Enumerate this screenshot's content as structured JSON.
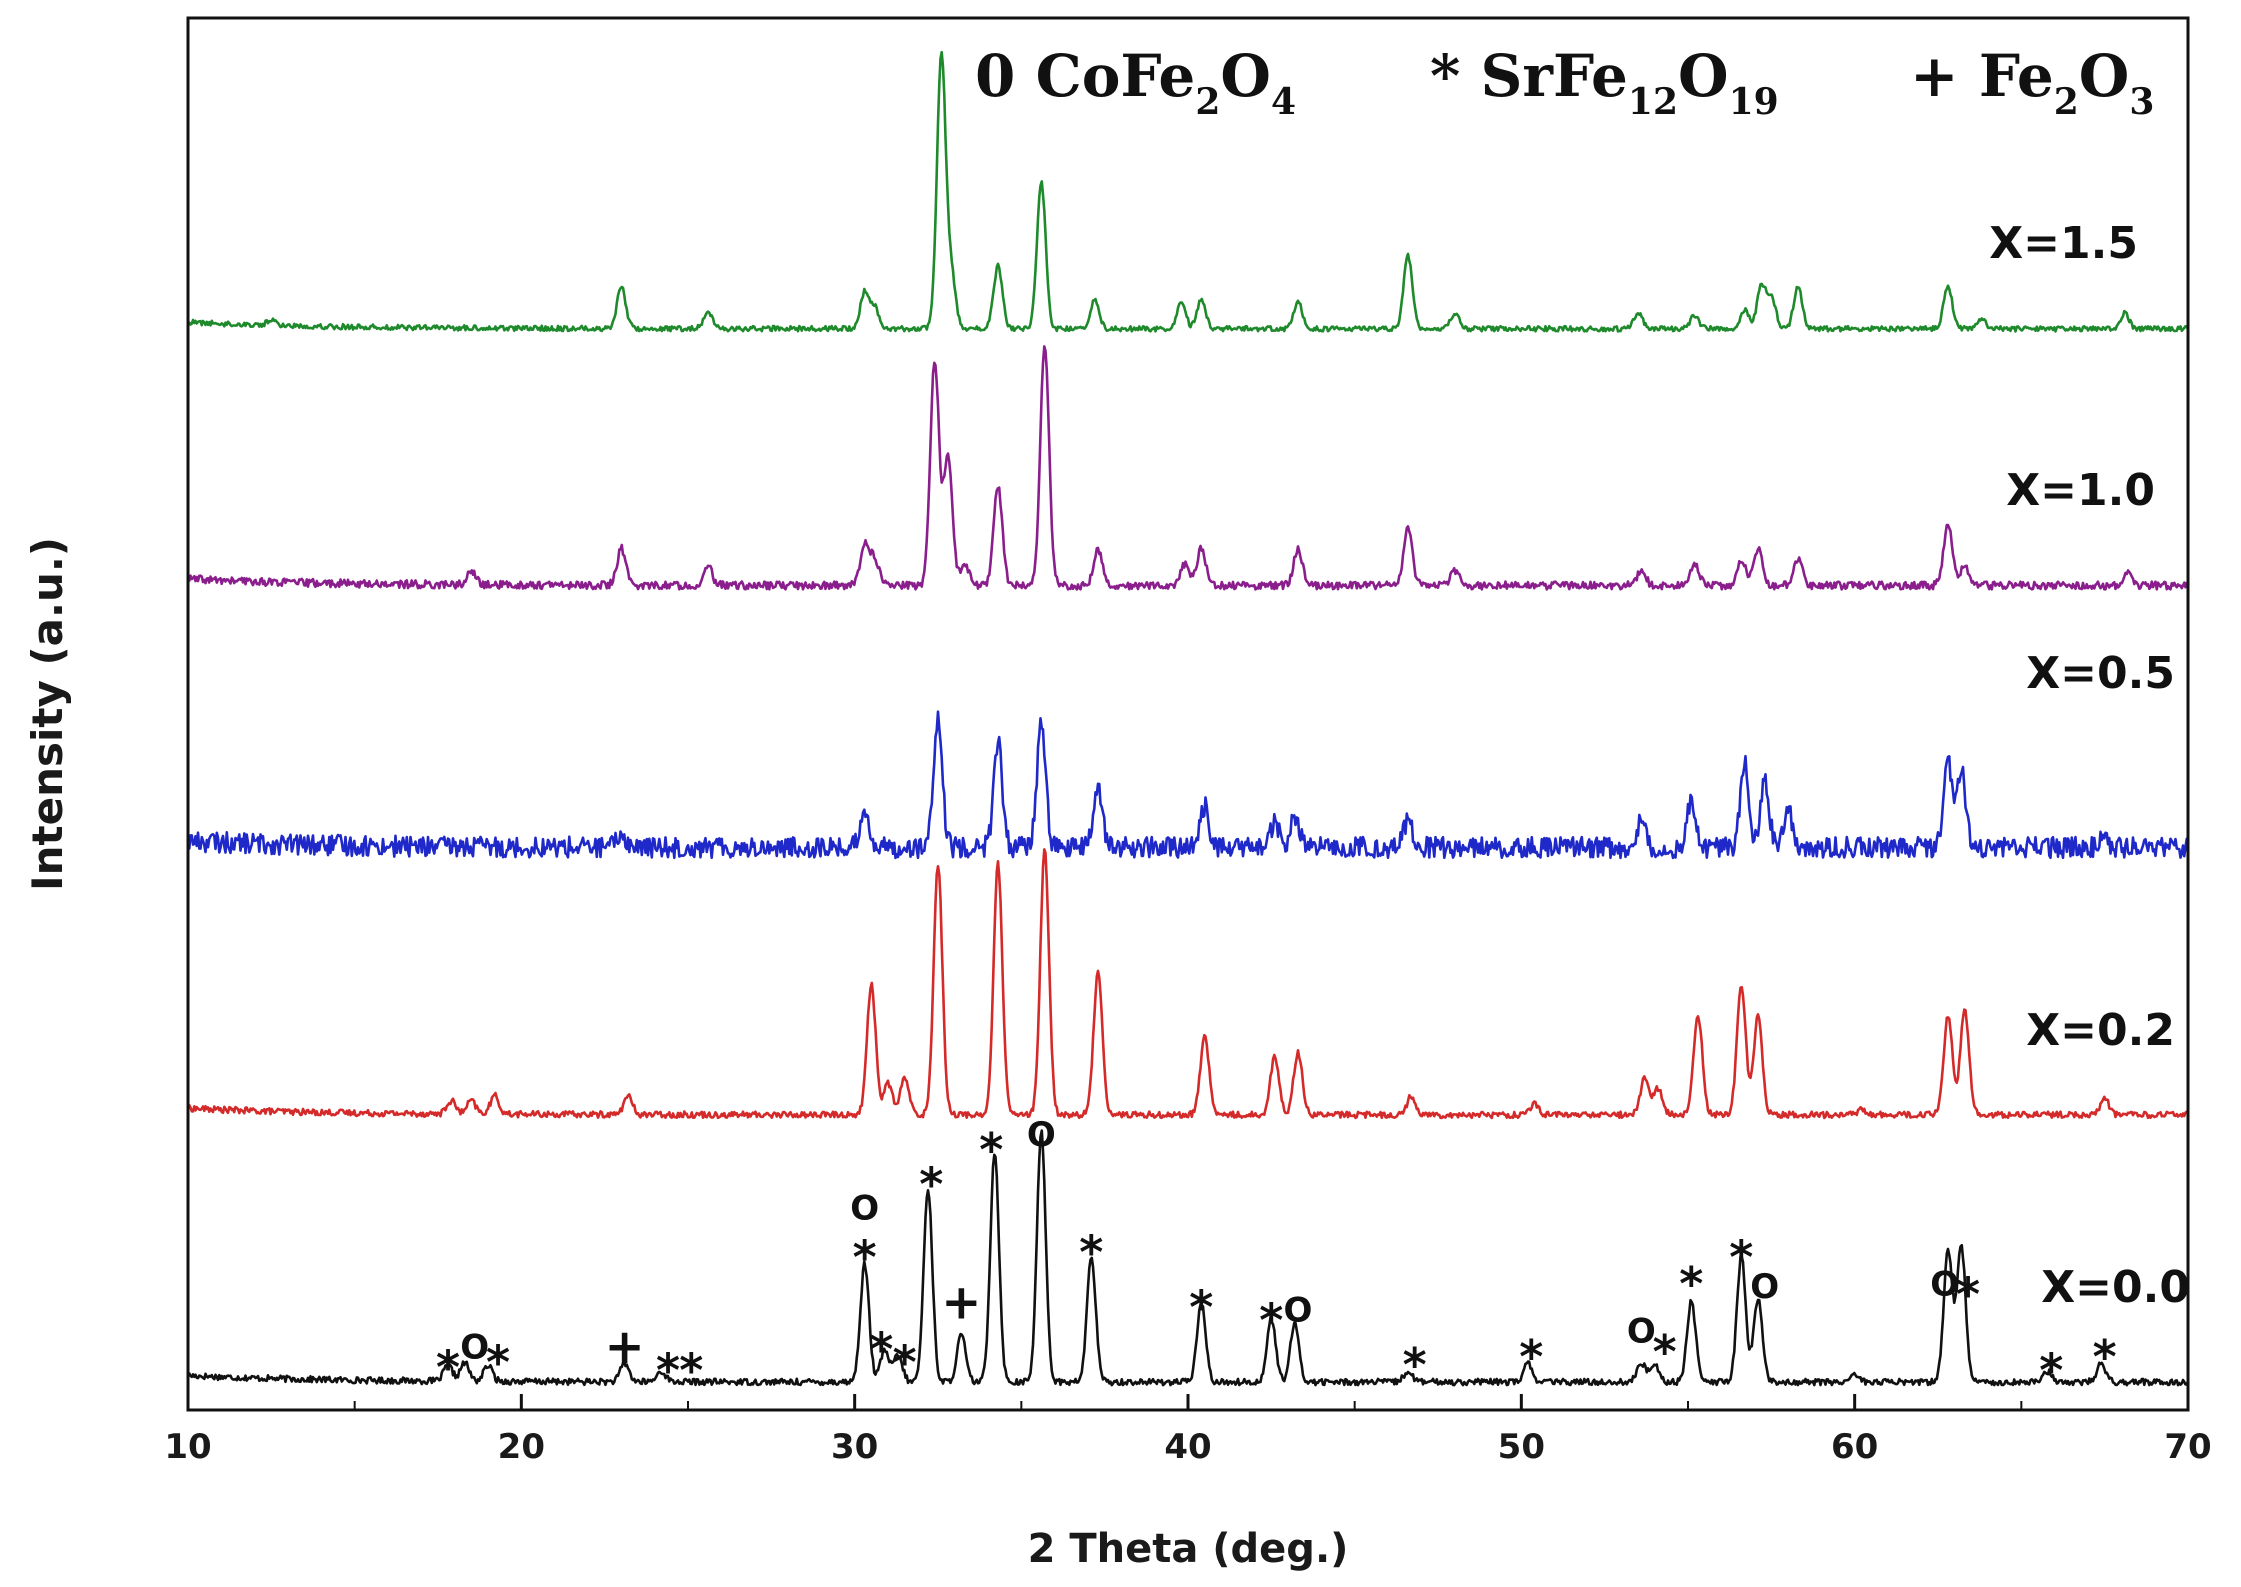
{
  "chart_data": {
    "type": "line",
    "xlabel": "2 Theta (deg.)",
    "ylabel": "Intensity (a.u.)",
    "xlim": [
      10,
      70
    ],
    "xticks": [
      "10",
      "20",
      "30",
      "40",
      "50",
      "60",
      "70"
    ],
    "y_ticks_shown": false,
    "grid": false,
    "legend": {
      "placement": "top",
      "items": [
        {
          "symbol": "0",
          "formula": [
            [
              "Co",
              ""
            ],
            [
              "Fe",
              "2"
            ],
            [
              "O",
              "4"
            ]
          ]
        },
        {
          "symbol": "*",
          "formula": [
            [
              "Sr",
              ""
            ],
            [
              "Fe",
              "12"
            ],
            [
              "O",
              "19"
            ]
          ]
        },
        {
          "symbol": "+",
          "formula": [
            [
              "Fe",
              "2"
            ],
            [
              "O",
              "3"
            ]
          ]
        }
      ]
    },
    "series": [
      {
        "name": "X=0.0",
        "color": "#111111",
        "baseline": 0.0,
        "noise": 0.012,
        "peaks": [
          [
            17.8,
            0.06
          ],
          [
            18.3,
            0.07
          ],
          [
            19.0,
            0.06
          ],
          [
            23.1,
            0.07
          ],
          [
            24.2,
            0.04
          ],
          [
            30.3,
            0.45
          ],
          [
            30.9,
            0.12
          ],
          [
            31.3,
            0.1
          ],
          [
            32.2,
            0.74
          ],
          [
            33.2,
            0.18
          ],
          [
            34.2,
            0.88
          ],
          [
            35.6,
            0.96
          ],
          [
            37.1,
            0.48
          ],
          [
            40.4,
            0.3
          ],
          [
            42.5,
            0.24
          ],
          [
            43.2,
            0.22
          ],
          [
            46.6,
            0.04
          ],
          [
            50.2,
            0.07
          ],
          [
            53.6,
            0.07
          ],
          [
            54.0,
            0.07
          ],
          [
            55.1,
            0.31
          ],
          [
            56.6,
            0.48
          ],
          [
            57.1,
            0.32
          ],
          [
            60.0,
            0.03
          ],
          [
            62.8,
            0.5
          ],
          [
            63.2,
            0.52
          ],
          [
            65.8,
            0.04
          ],
          [
            67.4,
            0.07
          ]
        ]
      },
      {
        "name": "X=0.2",
        "color": "#d42a2a",
        "baseline": 1.02,
        "noise": 0.012,
        "peaks": [
          [
            17.9,
            0.05
          ],
          [
            18.5,
            0.05
          ],
          [
            19.2,
            0.07
          ],
          [
            23.2,
            0.07
          ],
          [
            30.5,
            0.5
          ],
          [
            31.0,
            0.12
          ],
          [
            31.5,
            0.14
          ],
          [
            32.5,
            0.96
          ],
          [
            34.3,
            0.96
          ],
          [
            35.7,
            1.01
          ],
          [
            37.3,
            0.55
          ],
          [
            40.5,
            0.3
          ],
          [
            42.6,
            0.22
          ],
          [
            43.3,
            0.24
          ],
          [
            46.7,
            0.07
          ],
          [
            50.4,
            0.04
          ],
          [
            53.7,
            0.14
          ],
          [
            54.1,
            0.1
          ],
          [
            55.3,
            0.38
          ],
          [
            56.6,
            0.5
          ],
          [
            57.1,
            0.38
          ],
          [
            60.2,
            0.02
          ],
          [
            62.8,
            0.38
          ],
          [
            63.3,
            0.4
          ],
          [
            67.5,
            0.06
          ]
        ]
      },
      {
        "name": "X=0.5",
        "color": "#1f28c8",
        "baseline": 2.04,
        "noise": 0.04,
        "peaks": [
          [
            23.0,
            0.05
          ],
          [
            30.3,
            0.15
          ],
          [
            32.5,
            0.48
          ],
          [
            34.3,
            0.4
          ],
          [
            35.6,
            0.48
          ],
          [
            37.3,
            0.24
          ],
          [
            40.5,
            0.16
          ],
          [
            42.6,
            0.09
          ],
          [
            43.2,
            0.12
          ],
          [
            46.6,
            0.1
          ],
          [
            53.6,
            0.1
          ],
          [
            55.1,
            0.18
          ],
          [
            56.7,
            0.33
          ],
          [
            57.3,
            0.26
          ],
          [
            58.0,
            0.15
          ],
          [
            62.8,
            0.33
          ],
          [
            63.2,
            0.3
          ],
          [
            67.5,
            0.04
          ]
        ]
      },
      {
        "name": "X=1.0",
        "color": "#8a1e8c",
        "baseline": 3.04,
        "noise": 0.015,
        "peaks": [
          [
            18.5,
            0.05
          ],
          [
            23.0,
            0.14
          ],
          [
            25.6,
            0.07
          ],
          [
            30.3,
            0.16
          ],
          [
            30.6,
            0.1
          ],
          [
            32.4,
            0.86
          ],
          [
            32.8,
            0.5
          ],
          [
            33.3,
            0.08
          ],
          [
            34.3,
            0.38
          ],
          [
            35.7,
            0.92
          ],
          [
            37.3,
            0.14
          ],
          [
            39.9,
            0.08
          ],
          [
            40.4,
            0.14
          ],
          [
            43.3,
            0.14
          ],
          [
            46.6,
            0.22
          ],
          [
            48.0,
            0.06
          ],
          [
            53.6,
            0.06
          ],
          [
            55.2,
            0.08
          ],
          [
            56.6,
            0.1
          ],
          [
            57.1,
            0.14
          ],
          [
            58.3,
            0.1
          ],
          [
            62.8,
            0.24
          ],
          [
            63.3,
            0.08
          ],
          [
            68.2,
            0.05
          ]
        ]
      },
      {
        "name": "X=1.5",
        "color": "#1e8a2c",
        "baseline": 4.02,
        "noise": 0.01,
        "peaks": [
          [
            12.5,
            0.02
          ],
          [
            23.0,
            0.16
          ],
          [
            25.6,
            0.06
          ],
          [
            30.3,
            0.14
          ],
          [
            30.6,
            0.08
          ],
          [
            32.6,
            1.04
          ],
          [
            32.9,
            0.2
          ],
          [
            34.3,
            0.24
          ],
          [
            35.6,
            0.56
          ],
          [
            37.2,
            0.11
          ],
          [
            39.8,
            0.1
          ],
          [
            40.4,
            0.11
          ],
          [
            43.3,
            0.1
          ],
          [
            46.6,
            0.28
          ],
          [
            48.0,
            0.06
          ],
          [
            53.5,
            0.06
          ],
          [
            55.2,
            0.05
          ],
          [
            56.7,
            0.07
          ],
          [
            57.2,
            0.16
          ],
          [
            57.5,
            0.12
          ],
          [
            58.3,
            0.16
          ],
          [
            62.8,
            0.16
          ],
          [
            63.8,
            0.04
          ],
          [
            68.1,
            0.06
          ]
        ]
      }
    ],
    "annotations": [
      {
        "text": "*",
        "x": 17.8,
        "y": 0.07
      },
      {
        "text": "O",
        "x": 18.6,
        "y": 0.09
      },
      {
        "text": "*",
        "x": 19.3,
        "y": 0.09
      },
      {
        "text": "+",
        "x": 23.1,
        "y": 0.08
      },
      {
        "text": "*",
        "x": 24.4,
        "y": 0.06
      },
      {
        "text": "*",
        "x": 25.1,
        "y": 0.06
      },
      {
        "text": "O",
        "x": 30.3,
        "y": 0.62
      },
      {
        "text": "*",
        "x": 30.3,
        "y": 0.49
      },
      {
        "text": "*",
        "x": 30.8,
        "y": 0.14
      },
      {
        "text": "*",
        "x": 31.5,
        "y": 0.09
      },
      {
        "text": "*",
        "x": 32.3,
        "y": 0.77
      },
      {
        "text": "+",
        "x": 33.2,
        "y": 0.25
      },
      {
        "text": "*",
        "x": 34.1,
        "y": 0.9
      },
      {
        "text": "O",
        "x": 35.6,
        "y": 0.9
      },
      {
        "text": "*",
        "x": 37.1,
        "y": 0.51
      },
      {
        "text": "*",
        "x": 40.4,
        "y": 0.3
      },
      {
        "text": "*",
        "x": 42.5,
        "y": 0.25
      },
      {
        "text": "O",
        "x": 43.3,
        "y": 0.23
      },
      {
        "text": "*",
        "x": 46.8,
        "y": 0.08
      },
      {
        "text": "*",
        "x": 50.3,
        "y": 0.11
      },
      {
        "text": "O",
        "x": 53.6,
        "y": 0.15
      },
      {
        "text": "*",
        "x": 54.3,
        "y": 0.13
      },
      {
        "text": "*",
        "x": 55.1,
        "y": 0.39
      },
      {
        "text": "*",
        "x": 56.6,
        "y": 0.49
      },
      {
        "text": "O",
        "x": 57.3,
        "y": 0.32
      },
      {
        "text": "O",
        "x": 62.7,
        "y": 0.33
      },
      {
        "text": "*",
        "x": 63.4,
        "y": 0.35
      },
      {
        "text": "*",
        "x": 65.9,
        "y": 0.06
      },
      {
        "text": "*",
        "x": 67.5,
        "y": 0.11
      }
    ]
  }
}
